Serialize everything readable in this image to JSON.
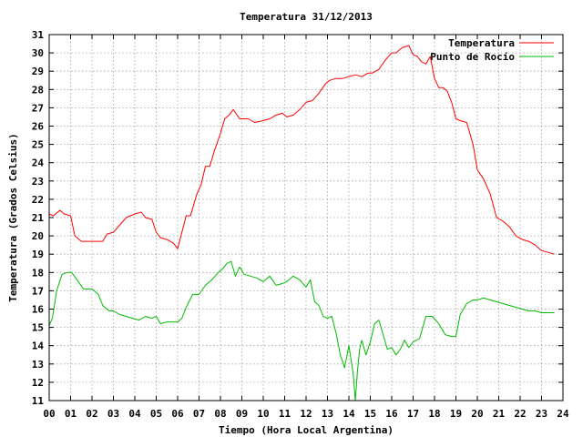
{
  "chart_data": {
    "type": "line",
    "title": "Temperatura 31/12/2013",
    "xlabel": "Tiempo (Hora Local Argentina)",
    "ylabel": "Temperatura (Grados Celsius)",
    "xlim": [
      0,
      24
    ],
    "ylim": [
      11,
      31
    ],
    "x_ticks": [
      "00",
      "01",
      "02",
      "03",
      "04",
      "05",
      "06",
      "07",
      "08",
      "09",
      "10",
      "11",
      "12",
      "13",
      "14",
      "15",
      "16",
      "17",
      "18",
      "19",
      "20",
      "21",
      "22",
      "23",
      "24"
    ],
    "y_ticks": [
      11,
      12,
      13,
      14,
      15,
      16,
      17,
      18,
      19,
      20,
      21,
      22,
      23,
      24,
      25,
      26,
      27,
      28,
      29,
      30,
      31
    ],
    "grid": true,
    "legend_position": "top-right",
    "series": [
      {
        "name": "Temperatura",
        "color": "#ff0000",
        "x": [
          0,
          0.2,
          0.5,
          0.7,
          1.0,
          1.2,
          1.5,
          2.0,
          2.5,
          2.7,
          3.0,
          3.3,
          3.6,
          4.0,
          4.3,
          4.5,
          4.8,
          5.0,
          5.2,
          5.5,
          5.8,
          6.0,
          6.2,
          6.4,
          6.6,
          6.9,
          7.1,
          7.3,
          7.5,
          7.7,
          8.0,
          8.2,
          8.4,
          8.6,
          8.9,
          9.1,
          9.3,
          9.6,
          10.0,
          10.3,
          10.6,
          10.9,
          11.1,
          11.4,
          11.7,
          12.0,
          12.3,
          12.6,
          12.9,
          13.1,
          13.4,
          13.7,
          14.0,
          14.3,
          14.6,
          14.9,
          15.1,
          15.4,
          15.7,
          16.0,
          16.2,
          16.5,
          16.8,
          17.0,
          17.2,
          17.4,
          17.6,
          17.8,
          18.0,
          18.2,
          18.4,
          18.6,
          18.8,
          19.0,
          19.2,
          19.5,
          19.8,
          20.0,
          20.3,
          20.6,
          20.9,
          21.2,
          21.5,
          21.8,
          22.1,
          22.4,
          22.7,
          23.0,
          23.3,
          23.6
        ],
        "values": [
          21.2,
          21.1,
          21.4,
          21.2,
          21.1,
          20.0,
          19.7,
          19.7,
          19.7,
          20.1,
          20.2,
          20.6,
          21.0,
          21.2,
          21.3,
          21.0,
          20.9,
          20.2,
          19.9,
          19.8,
          19.6,
          19.3,
          20.2,
          21.1,
          21.1,
          22.3,
          22.8,
          23.8,
          23.8,
          24.6,
          25.6,
          26.4,
          26.6,
          26.9,
          26.4,
          26.4,
          26.4,
          26.2,
          26.3,
          26.4,
          26.6,
          26.7,
          26.5,
          26.6,
          26.9,
          27.3,
          27.4,
          27.8,
          28.3,
          28.5,
          28.6,
          28.6,
          28.7,
          28.8,
          28.7,
          28.9,
          28.9,
          29.1,
          29.6,
          30.0,
          30.0,
          30.3,
          30.4,
          29.9,
          29.8,
          29.5,
          29.4,
          29.8,
          28.6,
          28.1,
          28.1,
          27.9,
          27.3,
          26.4,
          26.3,
          26.2,
          25.0,
          23.6,
          23.1,
          22.3,
          21.0,
          20.8,
          20.5,
          20.0,
          19.8,
          19.7,
          19.5,
          19.2,
          19.1,
          19.0
        ]
      },
      {
        "name": "Punto de Rocío",
        "color": "#00bb00",
        "x": [
          0,
          0.15,
          0.35,
          0.6,
          0.85,
          1.05,
          1.3,
          1.6,
          2.0,
          2.3,
          2.5,
          2.8,
          3.0,
          3.3,
          3.6,
          3.9,
          4.2,
          4.5,
          4.8,
          5.0,
          5.2,
          5.5,
          5.8,
          6.0,
          6.2,
          6.4,
          6.7,
          7.0,
          7.3,
          7.6,
          7.9,
          8.1,
          8.3,
          8.5,
          8.7,
          8.9,
          9.1,
          9.4,
          9.7,
          10.0,
          10.3,
          10.6,
          10.9,
          11.1,
          11.4,
          11.7,
          12.0,
          12.2,
          12.4,
          12.6,
          12.8,
          13.0,
          13.2,
          13.4,
          13.6,
          13.8,
          14.0,
          14.2,
          14.3,
          14.4,
          14.5,
          14.6,
          14.8,
          15.0,
          15.2,
          15.4,
          15.6,
          15.8,
          16.0,
          16.2,
          16.4,
          16.6,
          16.8,
          17.0,
          17.3,
          17.6,
          17.9,
          18.2,
          18.5,
          18.8,
          19.0,
          19.2,
          19.5,
          19.8,
          20.0,
          20.3,
          20.6,
          20.9,
          21.2,
          21.5,
          21.8,
          22.1,
          22.4,
          22.7,
          23.0,
          23.3,
          23.6
        ],
        "values": [
          15.1,
          15.5,
          17.0,
          17.9,
          18.0,
          18.0,
          17.6,
          17.1,
          17.1,
          16.8,
          16.2,
          15.9,
          15.9,
          15.7,
          15.6,
          15.5,
          15.4,
          15.6,
          15.5,
          15.6,
          15.2,
          15.3,
          15.3,
          15.3,
          15.5,
          16.1,
          16.8,
          16.8,
          17.3,
          17.6,
          18.0,
          18.2,
          18.5,
          18.6,
          17.8,
          18.3,
          17.9,
          17.8,
          17.7,
          17.5,
          17.8,
          17.3,
          17.4,
          17.5,
          17.8,
          17.6,
          17.2,
          17.6,
          16.4,
          16.2,
          15.6,
          15.5,
          15.6,
          14.7,
          13.5,
          12.8,
          14.0,
          12.5,
          11.0,
          12.6,
          13.8,
          14.3,
          13.5,
          14.2,
          15.2,
          15.4,
          14.6,
          13.8,
          13.9,
          13.5,
          13.8,
          14.3,
          13.9,
          14.2,
          14.4,
          15.6,
          15.6,
          15.2,
          14.6,
          14.5,
          14.5,
          15.7,
          16.3,
          16.5,
          16.5,
          16.6,
          16.5,
          16.4,
          16.3,
          16.2,
          16.1,
          16.0,
          15.9,
          15.9,
          15.8,
          15.8,
          15.8
        ]
      }
    ]
  }
}
